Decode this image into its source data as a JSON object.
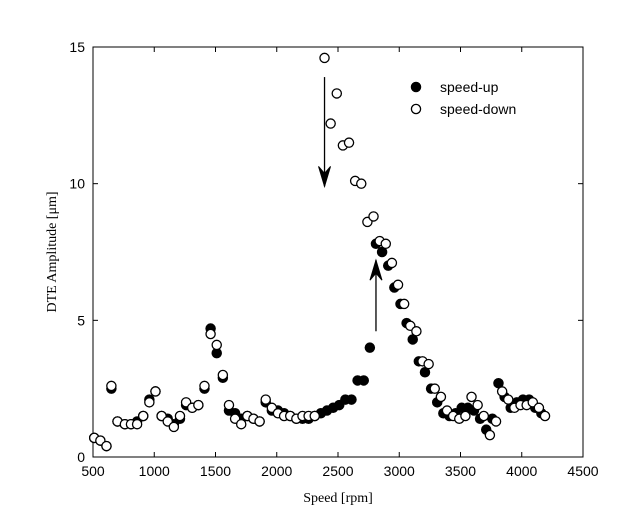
{
  "chart_data": {
    "type": "scatter",
    "title": "",
    "xlabel": "Speed [rpm]",
    "ylabel": "DTE Amplitude [μm]",
    "xlim": [
      500,
      4500
    ],
    "ylim": [
      0,
      15
    ],
    "xticks": [
      500,
      1000,
      1500,
      2000,
      2500,
      3000,
      3500,
      4000,
      4500
    ],
    "yticks": [
      0,
      5,
      10,
      15
    ],
    "grid": false,
    "legend": "top-right",
    "series": [
      {
        "name": "speed-up",
        "marker": "filled-circle",
        "color": "#000000",
        "points": [
          [
            510,
            0.7
          ],
          [
            560,
            0.6
          ],
          [
            610,
            0.4
          ],
          [
            650,
            2.5
          ],
          [
            700,
            1.3
          ],
          [
            760,
            1.2
          ],
          [
            810,
            1.2
          ],
          [
            860,
            1.3
          ],
          [
            910,
            1.5
          ],
          [
            960,
            2.1
          ],
          [
            1010,
            2.4
          ],
          [
            1060,
            1.5
          ],
          [
            1110,
            1.4
          ],
          [
            1160,
            1.2
          ],
          [
            1210,
            1.4
          ],
          [
            1260,
            1.9
          ],
          [
            1310,
            1.8
          ],
          [
            1360,
            1.9
          ],
          [
            1410,
            2.5
          ],
          [
            1460,
            4.7
          ],
          [
            1510,
            3.8
          ],
          [
            1560,
            2.9
          ],
          [
            1610,
            1.7
          ],
          [
            1660,
            1.6
          ],
          [
            1710,
            1.4
          ],
          [
            1760,
            1.5
          ],
          [
            1810,
            1.4
          ],
          [
            1860,
            1.3
          ],
          [
            1910,
            2.0
          ],
          [
            1960,
            1.7
          ],
          [
            2010,
            1.7
          ],
          [
            2060,
            1.6
          ],
          [
            2110,
            1.5
          ],
          [
            2160,
            1.4
          ],
          [
            2210,
            1.4
          ],
          [
            2260,
            1.4
          ],
          [
            2310,
            1.5
          ],
          [
            2360,
            1.6
          ],
          [
            2410,
            1.7
          ],
          [
            2460,
            1.8
          ],
          [
            2510,
            1.9
          ],
          [
            2560,
            2.1
          ],
          [
            2610,
            2.1
          ],
          [
            2660,
            2.8
          ],
          [
            2710,
            2.8
          ],
          [
            2760,
            4.0
          ],
          [
            2810,
            7.8
          ],
          [
            2860,
            7.5
          ],
          [
            2910,
            7.0
          ],
          [
            2960,
            6.2
          ],
          [
            3010,
            5.6
          ],
          [
            3060,
            4.9
          ],
          [
            3110,
            4.3
          ],
          [
            3160,
            3.5
          ],
          [
            3210,
            3.1
          ],
          [
            3260,
            2.5
          ],
          [
            3310,
            2.0
          ],
          [
            3360,
            1.6
          ],
          [
            3410,
            1.5
          ],
          [
            3460,
            1.6
          ],
          [
            3510,
            1.8
          ],
          [
            3560,
            1.8
          ],
          [
            3610,
            1.7
          ],
          [
            3660,
            1.4
          ],
          [
            3710,
            1.0
          ],
          [
            3760,
            1.4
          ],
          [
            3810,
            2.7
          ],
          [
            3860,
            2.2
          ],
          [
            3910,
            1.8
          ],
          [
            3960,
            2.0
          ],
          [
            4010,
            2.1
          ],
          [
            4060,
            2.1
          ],
          [
            4110,
            1.8
          ],
          [
            4160,
            1.6
          ]
        ]
      },
      {
        "name": "speed-down",
        "marker": "open-circle",
        "color": "#000000",
        "points": [
          [
            510,
            0.7
          ],
          [
            560,
            0.6
          ],
          [
            610,
            0.4
          ],
          [
            650,
            2.6
          ],
          [
            700,
            1.3
          ],
          [
            760,
            1.2
          ],
          [
            810,
            1.2
          ],
          [
            860,
            1.2
          ],
          [
            910,
            1.5
          ],
          [
            960,
            2.0
          ],
          [
            1010,
            2.4
          ],
          [
            1060,
            1.5
          ],
          [
            1110,
            1.3
          ],
          [
            1160,
            1.1
          ],
          [
            1210,
            1.5
          ],
          [
            1260,
            2.0
          ],
          [
            1310,
            1.8
          ],
          [
            1360,
            1.9
          ],
          [
            1410,
            2.6
          ],
          [
            1460,
            4.5
          ],
          [
            1510,
            4.1
          ],
          [
            1560,
            3.0
          ],
          [
            1610,
            1.9
          ],
          [
            1660,
            1.4
          ],
          [
            1710,
            1.2
          ],
          [
            1760,
            1.5
          ],
          [
            1810,
            1.4
          ],
          [
            1860,
            1.3
          ],
          [
            1910,
            2.1
          ],
          [
            1960,
            1.8
          ],
          [
            2010,
            1.6
          ],
          [
            2060,
            1.5
          ],
          [
            2110,
            1.5
          ],
          [
            2160,
            1.4
          ],
          [
            2210,
            1.5
          ],
          [
            2260,
            1.5
          ],
          [
            2310,
            1.5
          ],
          [
            2390,
            14.6
          ],
          [
            2440,
            12.2
          ],
          [
            2490,
            13.3
          ],
          [
            2540,
            11.4
          ],
          [
            2590,
            11.5
          ],
          [
            2640,
            10.1
          ],
          [
            2690,
            10.0
          ],
          [
            2740,
            8.6
          ],
          [
            2790,
            8.8
          ],
          [
            2840,
            7.9
          ],
          [
            2890,
            7.8
          ],
          [
            2940,
            7.1
          ],
          [
            2990,
            6.3
          ],
          [
            3040,
            5.6
          ],
          [
            3090,
            4.8
          ],
          [
            3140,
            4.6
          ],
          [
            3190,
            3.5
          ],
          [
            3240,
            3.4
          ],
          [
            3290,
            2.5
          ],
          [
            3340,
            2.2
          ],
          [
            3390,
            1.7
          ],
          [
            3440,
            1.5
          ],
          [
            3490,
            1.4
          ],
          [
            3540,
            1.5
          ],
          [
            3590,
            2.2
          ],
          [
            3640,
            1.9
          ],
          [
            3690,
            1.5
          ],
          [
            3740,
            0.8
          ],
          [
            3790,
            1.3
          ],
          [
            3840,
            2.4
          ],
          [
            3890,
            2.1
          ],
          [
            3940,
            1.8
          ],
          [
            3990,
            1.9
          ],
          [
            4040,
            1.9
          ],
          [
            4090,
            2.0
          ],
          [
            4140,
            1.8
          ],
          [
            4190,
            1.5
          ]
        ]
      }
    ],
    "annotations": [
      {
        "type": "arrow",
        "direction": "down",
        "from": [
          2390,
          13.9
        ],
        "to": [
          2390,
          9.9
        ]
      },
      {
        "type": "arrow",
        "direction": "up",
        "from": [
          2810,
          4.6
        ],
        "to": [
          2810,
          7.2
        ]
      }
    ]
  }
}
